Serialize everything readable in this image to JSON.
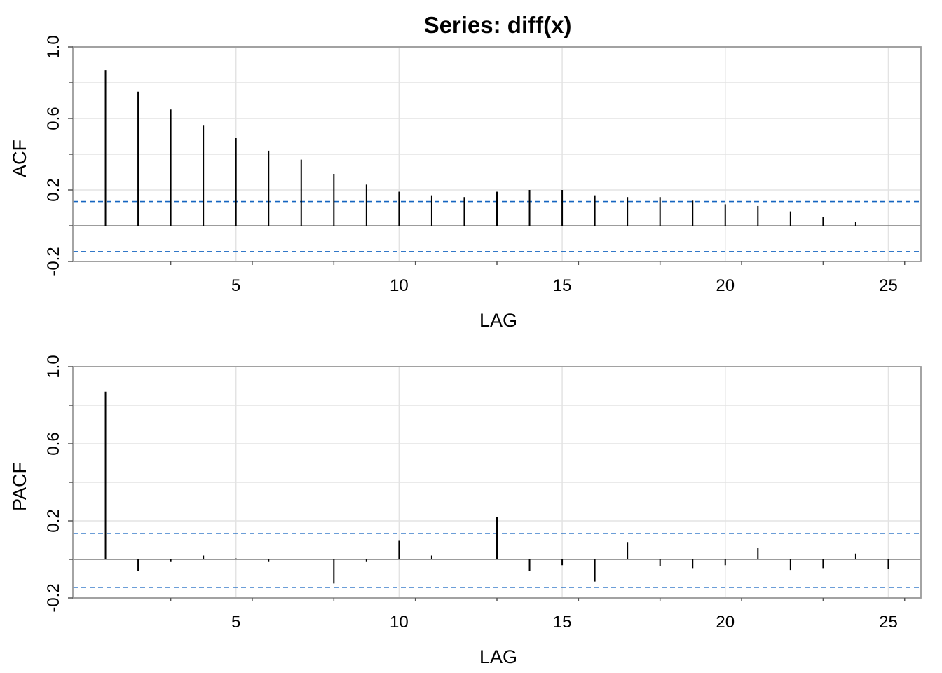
{
  "title": "Series:  diff(x)",
  "ci_color": "#1565C0",
  "chart_data": [
    {
      "type": "bar",
      "name": "acf-panel",
      "xlabel": "LAG",
      "ylabel": "ACF",
      "xlim": [
        0,
        26
      ],
      "ylim": [
        -0.2,
        1.0
      ],
      "xticks": [
        5,
        10,
        15,
        20,
        25
      ],
      "yticks": [
        -0.2,
        0.2,
        0.6,
        1.0
      ],
      "ytick_labels": [
        "-0.2",
        "0.2",
        "0.6",
        "1.0"
      ],
      "grid": true,
      "ci": [
        0.135,
        -0.145
      ],
      "x": [
        1,
        2,
        3,
        4,
        5,
        6,
        7,
        8,
        9,
        10,
        11,
        12,
        13,
        14,
        15,
        16,
        17,
        18,
        19,
        20,
        21,
        22,
        23,
        24
      ],
      "values": [
        0.87,
        0.75,
        0.65,
        0.56,
        0.49,
        0.42,
        0.37,
        0.29,
        0.23,
        0.19,
        0.17,
        0.16,
        0.19,
        0.2,
        0.2,
        0.17,
        0.16,
        0.16,
        0.14,
        0.12,
        0.11,
        0.08,
        0.05,
        0.02
      ]
    },
    {
      "type": "bar",
      "name": "pacf-panel",
      "xlabel": "LAG",
      "ylabel": "PACF",
      "xlim": [
        0,
        26
      ],
      "ylim": [
        -0.2,
        1.0
      ],
      "xticks": [
        5,
        10,
        15,
        20,
        25
      ],
      "yticks": [
        -0.2,
        0.2,
        0.6,
        1.0
      ],
      "ytick_labels": [
        "-0.2",
        "0.2",
        "0.6",
        "1.0"
      ],
      "grid": true,
      "ci": [
        0.135,
        -0.145
      ],
      "x": [
        1,
        2,
        3,
        4,
        5,
        6,
        7,
        8,
        9,
        10,
        11,
        12,
        13,
        14,
        15,
        16,
        17,
        18,
        19,
        20,
        21,
        22,
        23,
        24,
        25
      ],
      "values": [
        0.87,
        -0.06,
        -0.01,
        0.02,
        0.005,
        -0.01,
        0.0,
        -0.125,
        -0.01,
        0.1,
        0.02,
        0.0,
        0.22,
        -0.06,
        -0.03,
        -0.115,
        0.09,
        -0.035,
        -0.045,
        -0.03,
        0.06,
        -0.055,
        -0.045,
        0.03,
        -0.05
      ]
    }
  ]
}
